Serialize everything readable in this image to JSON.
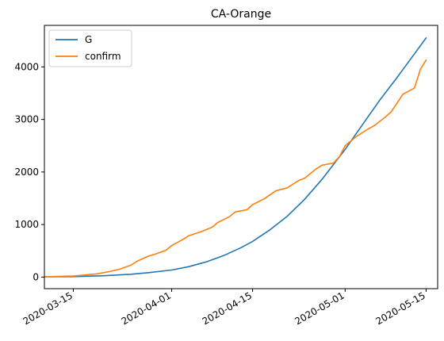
{
  "chart_data": {
    "type": "line",
    "title": "CA-Orange",
    "xlabel": "",
    "ylabel": "",
    "x_axis_kind": "date",
    "xlim": [
      "2020-03-10",
      "2020-05-17"
    ],
    "ylim": [
      -220,
      4790
    ],
    "x_ticks": [
      "2020-03-15",
      "2020-04-01",
      "2020-04-15",
      "2020-05-01",
      "2020-05-15"
    ],
    "y_ticks": [
      0,
      1000,
      2000,
      3000,
      4000
    ],
    "legend_position": "top-left",
    "grid": false,
    "series": [
      {
        "name": "G",
        "color": "#1f77b4",
        "x": [
          "2020-03-10",
          "2020-03-15",
          "2020-03-20",
          "2020-03-25",
          "2020-03-28",
          "2020-04-01",
          "2020-04-04",
          "2020-04-07",
          "2020-04-10",
          "2020-04-13",
          "2020-04-15",
          "2020-04-18",
          "2020-04-21",
          "2020-04-24",
          "2020-04-27",
          "2020-05-01",
          "2020-05-04",
          "2020-05-07",
          "2020-05-10",
          "2020-05-13",
          "2020-05-15"
        ],
        "y": [
          5,
          10,
          25,
          55,
          85,
          135,
          200,
          290,
          410,
          560,
          680,
          900,
          1160,
          1480,
          1860,
          2430,
          2900,
          3370,
          3800,
          4250,
          4550
        ]
      },
      {
        "name": "confirm",
        "color": "#ff7f0e",
        "x": [
          "2020-03-10",
          "2020-03-15",
          "2020-03-19",
          "2020-03-21",
          "2020-03-23",
          "2020-03-25",
          "2020-03-26",
          "2020-03-28",
          "2020-03-29",
          "2020-03-30",
          "2020-03-31",
          "2020-04-01",
          "2020-04-03",
          "2020-04-04",
          "2020-04-06",
          "2020-04-08",
          "2020-04-09",
          "2020-04-11",
          "2020-04-12",
          "2020-04-14",
          "2020-04-15",
          "2020-04-17",
          "2020-04-19",
          "2020-04-21",
          "2020-04-23",
          "2020-04-24",
          "2020-04-26",
          "2020-04-27",
          "2020-04-29",
          "2020-04-30",
          "2020-05-01",
          "2020-05-03",
          "2020-05-05",
          "2020-05-06",
          "2020-05-08",
          "2020-05-09",
          "2020-05-11",
          "2020-05-13",
          "2020-05-14",
          "2020-05-15"
        ],
        "y": [
          5,
          20,
          60,
          100,
          150,
          230,
          300,
          400,
          430,
          470,
          510,
          600,
          720,
          790,
          860,
          950,
          1040,
          1150,
          1240,
          1280,
          1380,
          1490,
          1640,
          1700,
          1840,
          1880,
          2060,
          2130,
          2170,
          2290,
          2500,
          2680,
          2820,
          2880,
          3050,
          3150,
          3480,
          3600,
          3950,
          4130
        ]
      }
    ]
  }
}
